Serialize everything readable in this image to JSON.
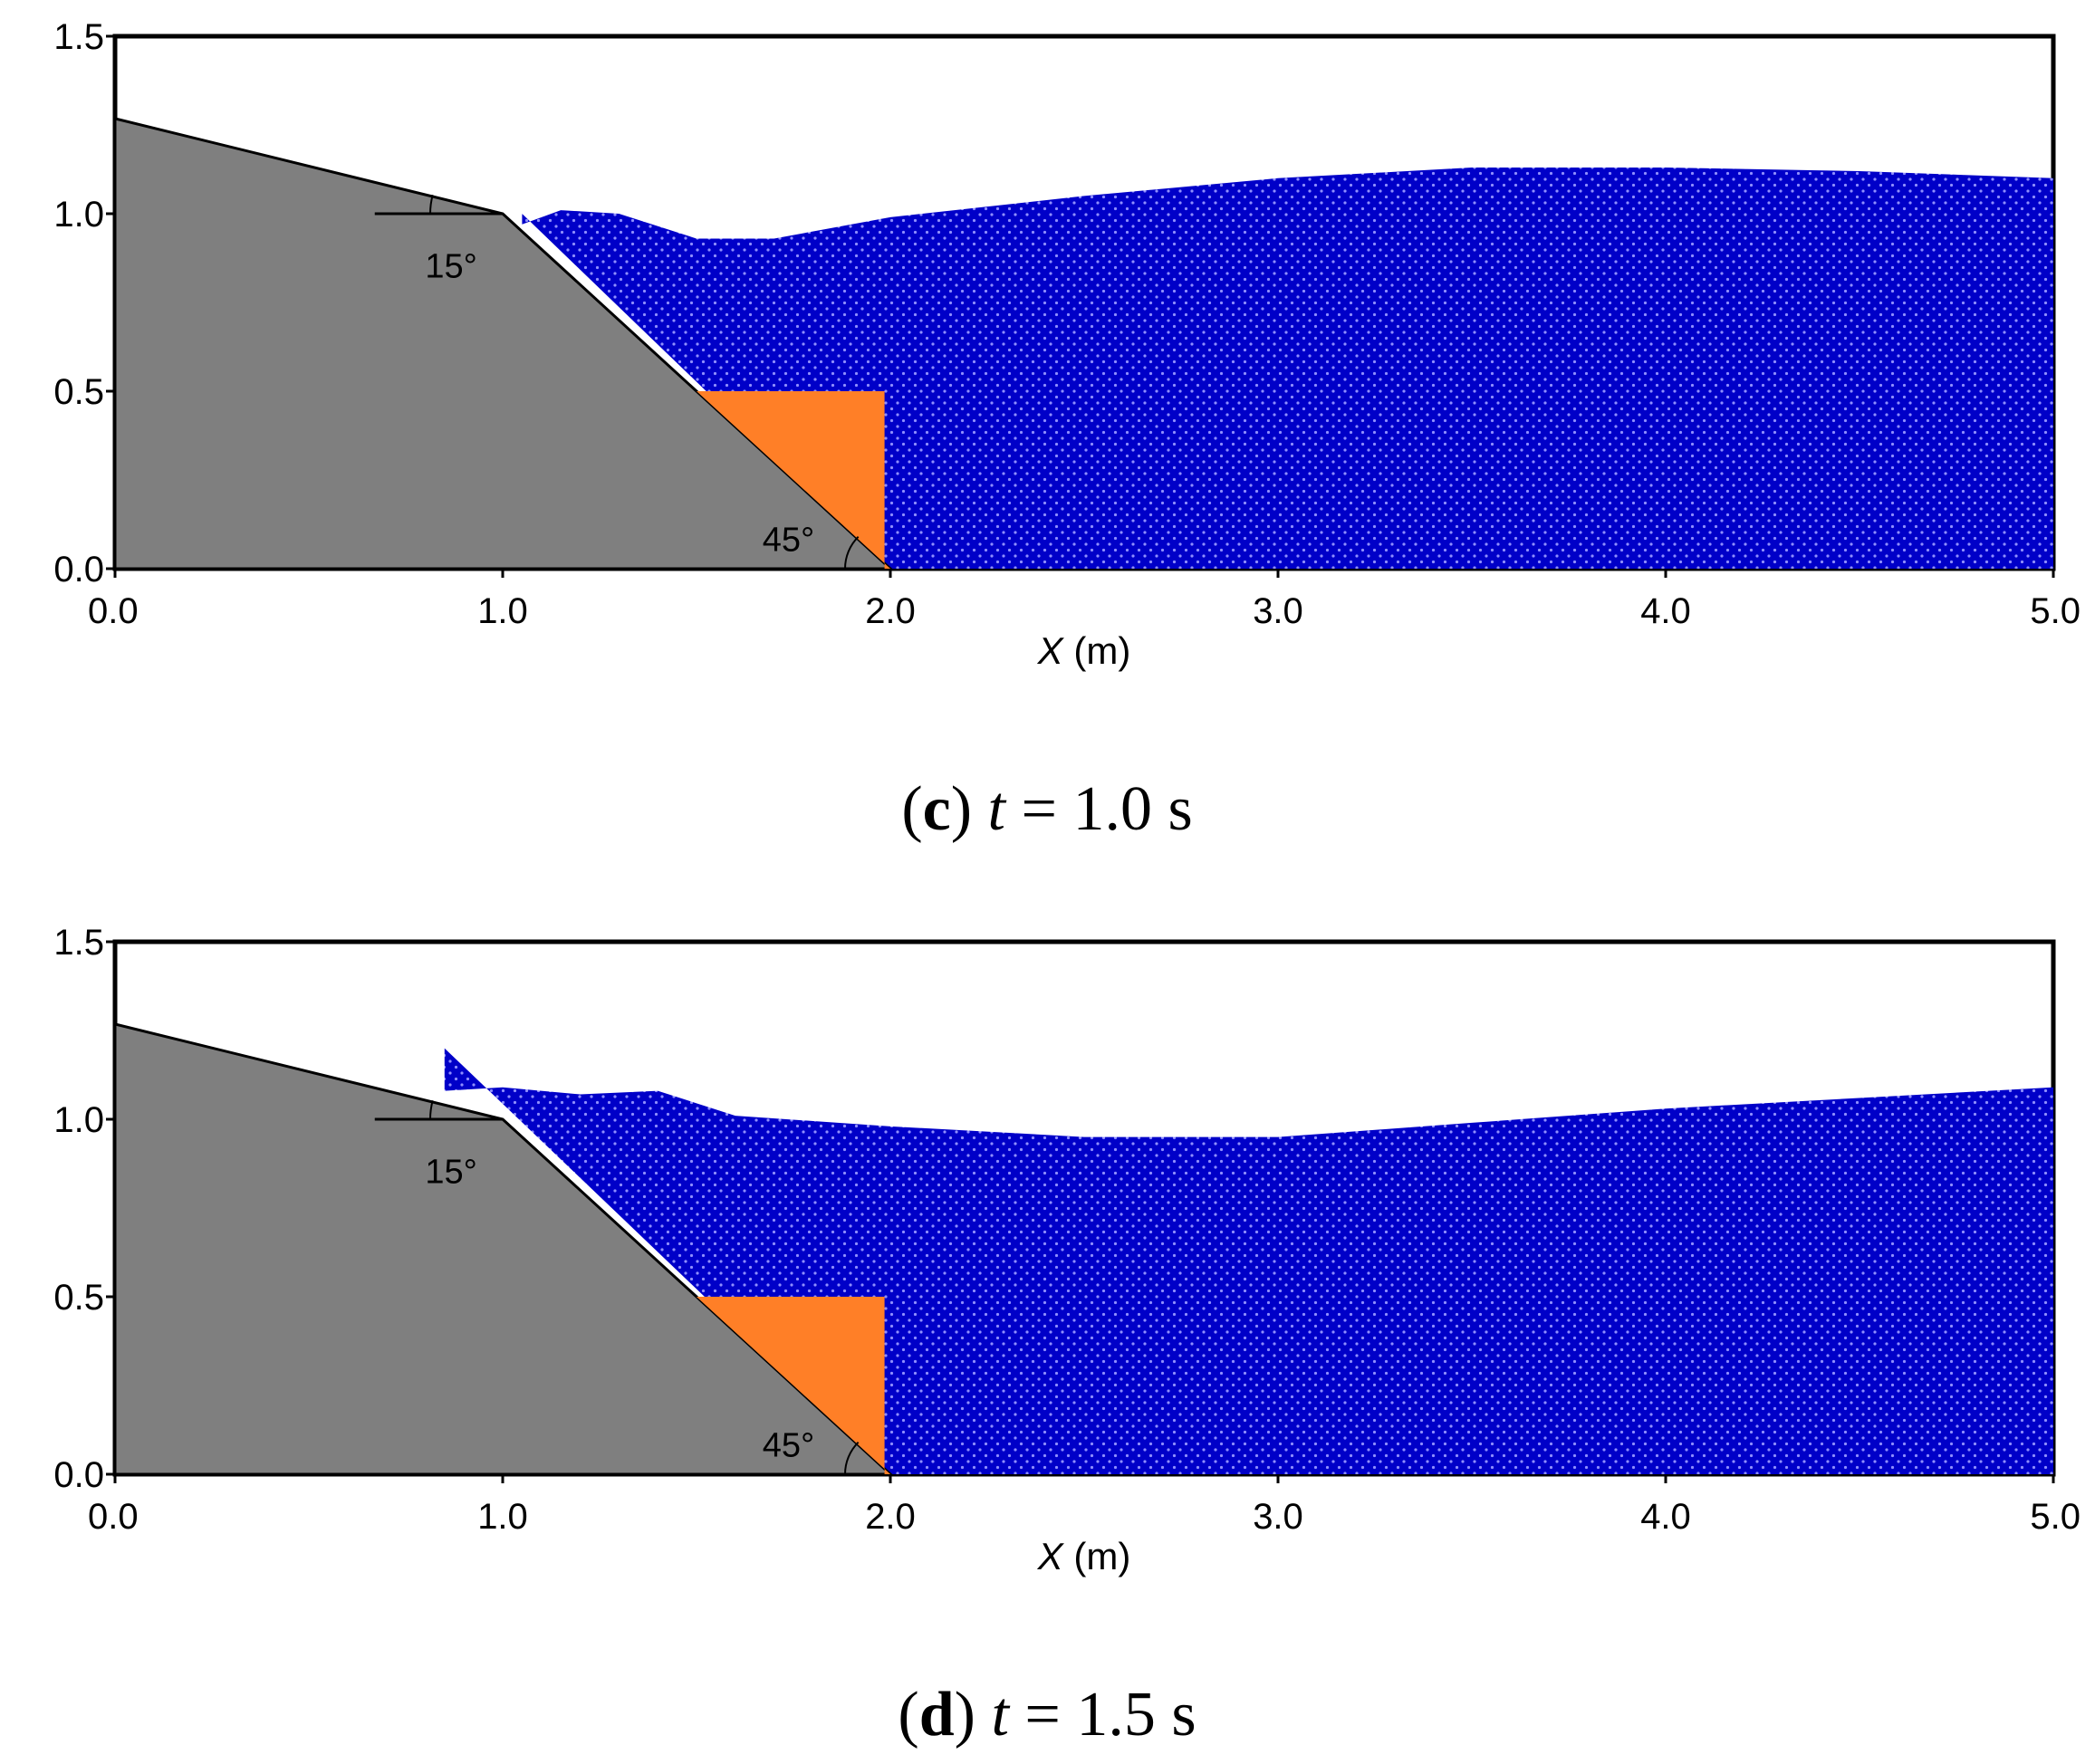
{
  "panels": [
    {
      "id": "c",
      "caption": {
        "open": "(",
        "letter": "c",
        "close": ")",
        "var": "t",
        "rest": " = 1.0 s"
      },
      "x_label": {
        "var": "X",
        "unit": " (m)"
      },
      "x_ticks": [
        "0.0",
        "1.0",
        "2.0",
        "3.0",
        "4.0",
        "5.0"
      ],
      "y_ticks": [
        "0.0",
        "0.5",
        "1.0",
        "1.5"
      ],
      "angle_top": "15°",
      "angle_bottom": "45°",
      "water_surface": [
        [
          1.05,
          0.97
        ],
        [
          1.15,
          1.01
        ],
        [
          1.3,
          1.0
        ],
        [
          1.5,
          0.93
        ],
        [
          1.7,
          0.93
        ],
        [
          2.0,
          0.99
        ],
        [
          2.5,
          1.05
        ],
        [
          3.0,
          1.1
        ],
        [
          3.5,
          1.13
        ],
        [
          4.0,
          1.13
        ],
        [
          4.5,
          1.12
        ],
        [
          5.0,
          1.1
        ]
      ]
    },
    {
      "id": "d",
      "caption": {
        "open": "(",
        "letter": "d",
        "close": ")",
        "var": "t",
        "rest": " = 1.5 s"
      },
      "x_label": {
        "var": "X",
        "unit": " (m)"
      },
      "x_ticks": [
        "0.0",
        "1.0",
        "2.0",
        "3.0",
        "4.0",
        "5.0"
      ],
      "y_ticks": [
        "0.0",
        "0.5",
        "1.0",
        "1.5"
      ],
      "angle_top": "15°",
      "angle_bottom": "45°",
      "water_surface": [
        [
          0.85,
          1.08
        ],
        [
          1.0,
          1.09
        ],
        [
          1.2,
          1.07
        ],
        [
          1.4,
          1.08
        ],
        [
          1.6,
          1.01
        ],
        [
          2.0,
          0.98
        ],
        [
          2.5,
          0.95
        ],
        [
          3.0,
          0.95
        ],
        [
          3.5,
          0.99
        ],
        [
          4.0,
          1.03
        ],
        [
          4.5,
          1.06
        ],
        [
          5.0,
          1.09
        ]
      ]
    }
  ],
  "colors": {
    "slope": "#7f7f7f",
    "block": "#ff7f27",
    "water": "#0000cc",
    "frame": "#000000"
  }
}
